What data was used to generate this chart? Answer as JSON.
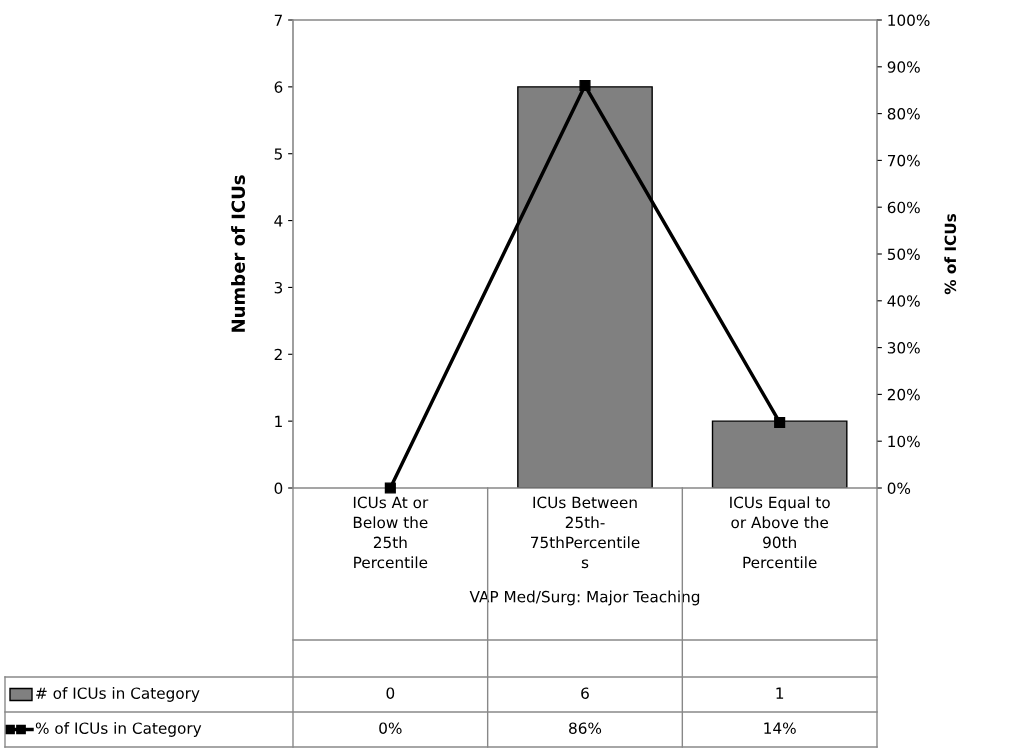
{
  "chart_data": {
    "type": "bar",
    "categories": [
      "ICUs At or\nBelow the\n25th\nPercentile",
      "ICUs Between\n25th-\n75thPercentile\ns",
      "ICUs Equal to\nor Above the\n90th\nPercentile"
    ],
    "xlabel": "VAP Med/Surg: Major Teaching",
    "ylabel": "Number of ICUs",
    "y2label": "% of ICUs",
    "series": [
      {
        "name": "# of ICUs in Category",
        "color": "#808080",
        "values": [
          0,
          6,
          1
        ],
        "value_labels": [
          "0",
          "6",
          "1"
        ]
      },
      {
        "name": "% of ICUs in Category",
        "type": "line",
        "axis": "y2",
        "color": "#000000",
        "marker": "square",
        "values": [
          0,
          86,
          14
        ],
        "value_labels": [
          "0%",
          "86%",
          "14%"
        ]
      }
    ],
    "ylim": [
      0,
      7
    ],
    "yticks": [
      0,
      1,
      2,
      3,
      4,
      5,
      6,
      7
    ],
    "y2lim": [
      0,
      100
    ],
    "y2ticks": [
      {
        "value": 0,
        "label": "0%"
      },
      {
        "value": 10,
        "label": "10%"
      },
      {
        "value": 20,
        "label": "20%"
      },
      {
        "value": 30,
        "label": "30%"
      },
      {
        "value": 40,
        "label": "40%"
      },
      {
        "value": 50,
        "label": "50%"
      },
      {
        "value": 60,
        "label": "60%"
      },
      {
        "value": 70,
        "label": "70%"
      },
      {
        "value": 80,
        "label": "80%"
      },
      {
        "value": 90,
        "label": "90%"
      },
      {
        "value": 100,
        "label": "100%"
      }
    ],
    "grid": false,
    "legend": "bottom"
  }
}
